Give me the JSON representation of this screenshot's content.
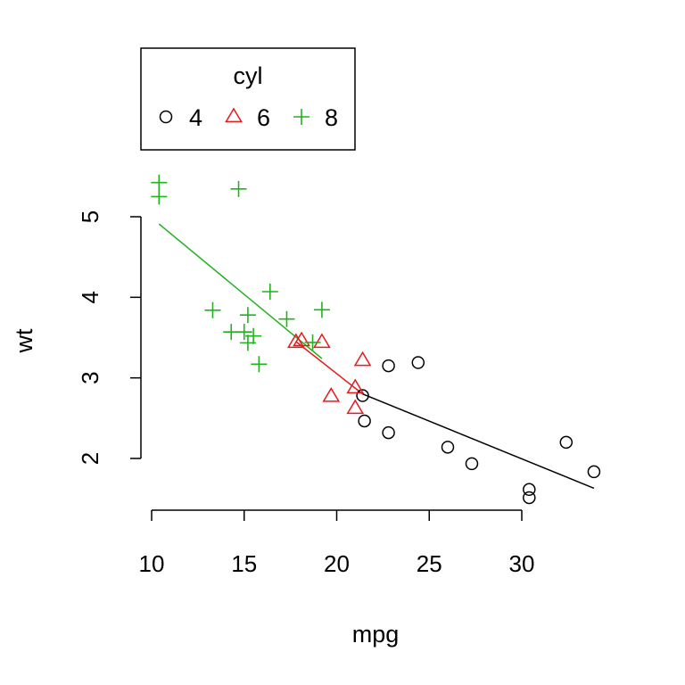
{
  "chart_data": {
    "type": "scatter",
    "title": "",
    "xlabel": "mpg",
    "ylabel": "wt",
    "xlim": [
      10,
      34
    ],
    "ylim": [
      1.4,
      5.5
    ],
    "x_ticks": [
      10,
      15,
      20,
      25,
      30
    ],
    "y_ticks": [
      2,
      3,
      4,
      5
    ],
    "x_tick_labels": [
      "10",
      "15",
      "20",
      "25",
      "30"
    ],
    "y_tick_labels": [
      "2",
      "3",
      "4",
      "5"
    ],
    "grid": false,
    "legend": {
      "title": "cyl",
      "position": "top-left",
      "layout": "horizontal"
    },
    "series": [
      {
        "name": "4",
        "color": "#000000",
        "marker": "circle",
        "points": [
          [
            22.8,
            2.32
          ],
          [
            24.4,
            3.19
          ],
          [
            22.8,
            3.15
          ],
          [
            32.4,
            2.2
          ],
          [
            30.4,
            1.615
          ],
          [
            33.9,
            1.835
          ],
          [
            21.5,
            2.465
          ],
          [
            27.3,
            1.935
          ],
          [
            26.0,
            2.14
          ],
          [
            30.4,
            1.513
          ],
          [
            21.4,
            2.78
          ]
        ],
        "fit": {
          "x": [
            21.4,
            33.9
          ],
          "y": [
            2.8,
            1.63
          ]
        }
      },
      {
        "name": "6",
        "color": "#e8191b",
        "marker": "triangle",
        "points": [
          [
            21.0,
            2.62
          ],
          [
            21.0,
            2.875
          ],
          [
            21.4,
            3.215
          ],
          [
            18.1,
            3.46
          ],
          [
            19.2,
            3.44
          ],
          [
            17.8,
            3.44
          ],
          [
            19.7,
            2.77
          ]
        ],
        "fit": {
          "x": [
            17.8,
            21.4
          ],
          "y": [
            3.45,
            2.8
          ]
        }
      },
      {
        "name": "8",
        "color": "#22b21f",
        "marker": "plus",
        "points": [
          [
            18.7,
            3.44
          ],
          [
            14.3,
            3.57
          ],
          [
            16.4,
            4.07
          ],
          [
            17.3,
            3.73
          ],
          [
            15.2,
            3.78
          ],
          [
            10.4,
            5.25
          ],
          [
            10.4,
            5.424
          ],
          [
            14.7,
            5.345
          ],
          [
            15.5,
            3.52
          ],
          [
            15.2,
            3.435
          ],
          [
            13.3,
            3.84
          ],
          [
            19.2,
            3.845
          ],
          [
            15.8,
            3.17
          ],
          [
            15.0,
            3.57
          ]
        ],
        "fit": {
          "x": [
            10.4,
            19.2
          ],
          "y": [
            4.91,
            3.24
          ]
        }
      }
    ]
  }
}
